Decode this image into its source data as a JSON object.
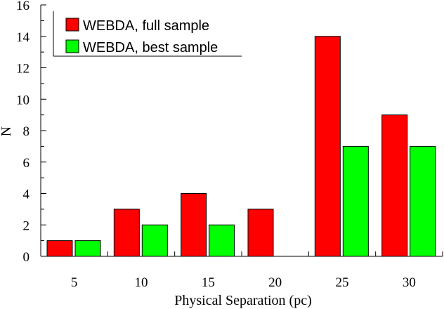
{
  "chart_data": {
    "type": "bar",
    "categories": [
      "5",
      "10",
      "15",
      "20",
      "25",
      "30"
    ],
    "series": [
      {
        "name": "WEBDA, full sample",
        "values": [
          1,
          3,
          4,
          3,
          14,
          9
        ],
        "color": "#ff0000"
      },
      {
        "name": "WEBDA, best sample",
        "values": [
          1,
          2,
          2,
          0,
          7,
          7
        ],
        "color": "#00ff00"
      }
    ],
    "xlabel": "Physical Separation (pc)",
    "ylabel": "N",
    "ylim": [
      0,
      16
    ],
    "yticks": [
      0,
      2,
      4,
      6,
      8,
      10,
      12,
      14,
      16
    ],
    "grid": false,
    "legend_position": "top-left"
  }
}
